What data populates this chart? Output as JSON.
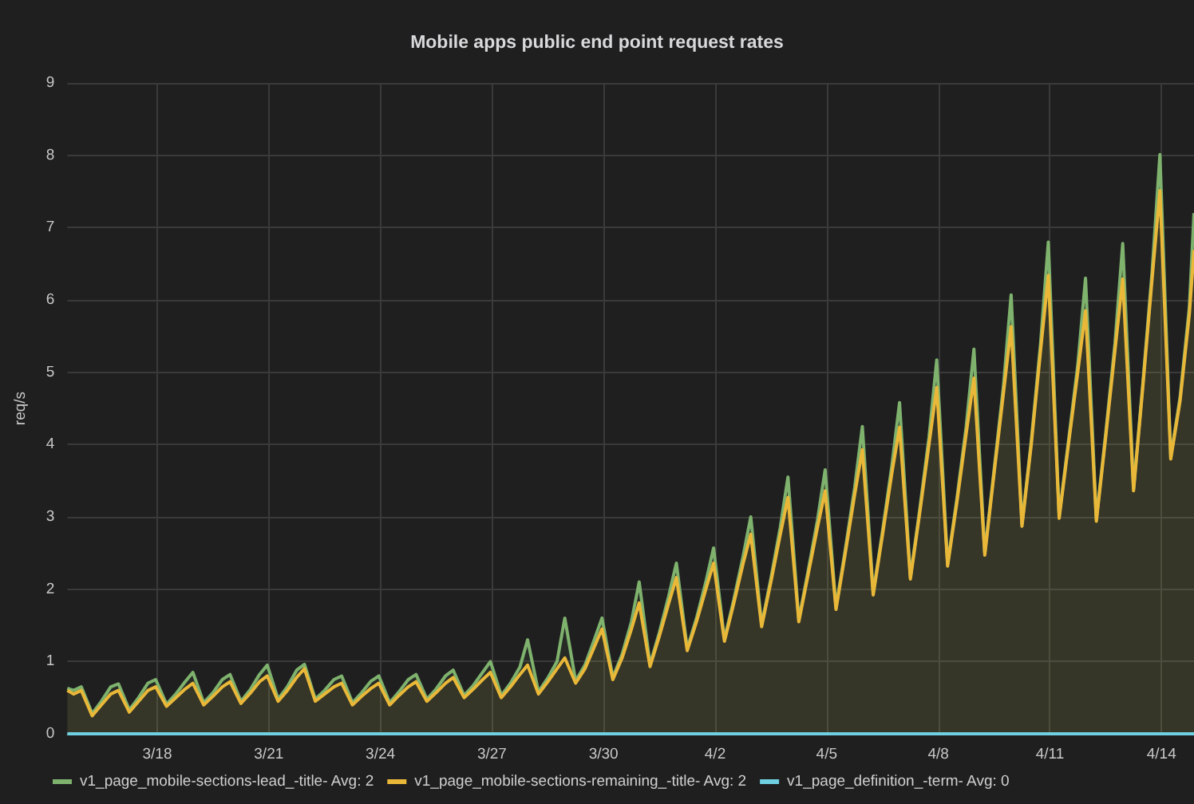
{
  "chart_data": {
    "type": "area",
    "title": "Mobile apps public end point request rates",
    "ylabel": "req/s",
    "x": [
      "--03-15T14:00",
      "--03-15T18:00",
      "--03-15T23:00",
      "--03-16T06:00",
      "--03-16T12:00",
      "--03-16T18:00",
      "--03-16T23:00",
      "--03-17T06:00",
      "--03-17T12:00",
      "--03-17T18:00",
      "--03-17T23:00",
      "--03-18T06:00",
      "--03-18T12:00",
      "--03-18T18:00",
      "--03-18T23:00",
      "--03-19T06:00",
      "--03-19T12:00",
      "--03-19T18:00",
      "--03-19T23:00",
      "--03-20T06:00",
      "--03-20T12:00",
      "--03-20T18:00",
      "--03-20T23:00",
      "--03-21T06:00",
      "--03-21T12:00",
      "--03-21T18:00",
      "--03-21T23:00",
      "--03-22T06:00",
      "--03-22T12:00",
      "--03-22T18:00",
      "--03-22T23:00",
      "--03-23T06:00",
      "--03-23T12:00",
      "--03-23T18:00",
      "--03-23T23:00",
      "--03-24T06:00",
      "--03-24T12:00",
      "--03-24T18:00",
      "--03-24T23:00",
      "--03-25T06:00",
      "--03-25T12:00",
      "--03-25T18:00",
      "--03-25T23:00",
      "--03-26T06:00",
      "--03-26T12:00",
      "--03-26T18:00",
      "--03-26T23:00",
      "--03-27T06:00",
      "--03-27T12:00",
      "--03-27T18:00",
      "--03-27T23:00",
      "--03-28T06:00",
      "--03-28T12:00",
      "--03-28T18:00",
      "--03-28T23:00",
      "--03-29T06:00",
      "--03-29T12:00",
      "--03-29T18:00",
      "--03-29T23:00",
      "--03-30T06:00",
      "--03-30T12:00",
      "--03-30T18:00",
      "--03-30T23:00",
      "--03-31T06:00",
      "--03-31T12:00",
      "--03-31T18:00",
      "--03-31T23:00",
      "--04-01T06:00",
      "--04-01T12:00",
      "--04-01T18:00",
      "--04-01T23:00",
      "--04-02T06:00",
      "--04-02T12:00",
      "--04-02T18:00",
      "--04-02T23:00",
      "--04-03T06:00",
      "--04-03T12:00",
      "--04-03T18:00",
      "--04-03T23:00",
      "--04-04T06:00",
      "--04-04T12:00",
      "--04-04T18:00",
      "--04-04T23:00",
      "--04-05T06:00",
      "--04-05T12:00",
      "--04-05T18:00",
      "--04-05T23:00",
      "--04-06T06:00",
      "--04-06T12:00",
      "--04-06T18:00",
      "--04-06T23:00",
      "--04-07T06:00",
      "--04-07T12:00",
      "--04-07T18:00",
      "--04-07T23:00",
      "--04-08T06:00",
      "--04-08T12:00",
      "--04-08T18:00",
      "--04-08T23:00",
      "--04-09T06:00",
      "--04-09T12:00",
      "--04-09T18:00",
      "--04-09T23:00",
      "--04-10T06:00",
      "--04-10T12:00",
      "--04-10T18:00",
      "--04-10T23:00",
      "--04-11T06:00",
      "--04-11T12:00",
      "--04-11T18:00",
      "--04-11T23:00",
      "--04-12T06:00",
      "--04-12T12:00",
      "--04-12T18:00",
      "--04-12T23:00",
      "--04-13T06:00",
      "--04-13T12:00",
      "--04-13T18:00",
      "--04-13T23:00",
      "--04-14T06:00",
      "--04-14T12:00",
      "--04-14T18:00",
      "--04-14T21:00"
    ],
    "series": [
      {
        "name": "v1_page_mobile-sections-lead_-title- Avg: 2",
        "color": "#7eb26d",
        "values": [
          0.63,
          0.6,
          0.65,
          0.28,
          0.45,
          0.65,
          0.69,
          0.33,
          0.5,
          0.7,
          0.75,
          0.41,
          0.55,
          0.72,
          0.85,
          0.43,
          0.57,
          0.75,
          0.82,
          0.45,
          0.61,
          0.82,
          0.95,
          0.48,
          0.65,
          0.88,
          0.96,
          0.48,
          0.6,
          0.75,
          0.8,
          0.43,
          0.57,
          0.73,
          0.8,
          0.43,
          0.58,
          0.75,
          0.82,
          0.48,
          0.62,
          0.8,
          0.88,
          0.53,
          0.67,
          0.85,
          1.0,
          0.53,
          0.7,
          0.92,
          1.3,
          0.58,
          0.77,
          1.0,
          1.6,
          0.73,
          0.95,
          1.3,
          1.6,
          0.78,
          1.1,
          1.55,
          2.1,
          0.96,
          1.4,
          1.9,
          2.36,
          1.18,
          1.6,
          2.1,
          2.57,
          1.31,
          1.85,
          2.45,
          3.0,
          1.51,
          2.15,
          2.85,
          3.55,
          1.58,
          2.25,
          2.95,
          3.65,
          1.75,
          2.55,
          3.4,
          4.25,
          1.95,
          2.8,
          3.7,
          4.58,
          2.17,
          3.1,
          4.1,
          5.17,
          2.35,
          3.25,
          4.25,
          5.32,
          2.5,
          3.65,
          4.8,
          6.07,
          2.9,
          4.05,
          5.4,
          6.8,
          3.01,
          4.05,
          5.1,
          6.3,
          2.97,
          4.15,
          5.4,
          6.78,
          3.39,
          4.85,
          6.4,
          8.01,
          3.83,
          4.65,
          5.9,
          7.2
        ]
      },
      {
        "name": "v1_page_mobile-sections-remaining_-title- Avg: 2",
        "color": "#eab839",
        "values": [
          0.6,
          0.55,
          0.6,
          0.25,
          0.4,
          0.55,
          0.6,
          0.3,
          0.45,
          0.6,
          0.65,
          0.38,
          0.5,
          0.62,
          0.7,
          0.4,
          0.52,
          0.65,
          0.72,
          0.42,
          0.56,
          0.72,
          0.8,
          0.45,
          0.6,
          0.78,
          0.9,
          0.45,
          0.55,
          0.65,
          0.7,
          0.4,
          0.52,
          0.63,
          0.7,
          0.4,
          0.53,
          0.65,
          0.72,
          0.45,
          0.57,
          0.7,
          0.78,
          0.5,
          0.62,
          0.75,
          0.85,
          0.5,
          0.65,
          0.82,
          0.95,
          0.55,
          0.72,
          0.9,
          1.05,
          0.7,
          0.9,
          1.2,
          1.45,
          0.75,
          1.05,
          1.45,
          1.81,
          0.93,
          1.35,
          1.8,
          2.16,
          1.15,
          1.55,
          2.0,
          2.36,
          1.28,
          1.8,
          2.35,
          2.76,
          1.48,
          2.1,
          2.75,
          3.27,
          1.55,
          2.2,
          2.85,
          3.36,
          1.72,
          2.5,
          3.3,
          3.93,
          1.92,
          2.75,
          3.6,
          4.24,
          2.14,
          3.05,
          4.0,
          4.79,
          2.32,
          3.2,
          4.15,
          4.92,
          2.47,
          3.6,
          4.7,
          5.63,
          2.87,
          4.0,
          5.3,
          6.34,
          2.98,
          4.0,
          5.0,
          5.85,
          2.94,
          4.1,
          5.3,
          6.29,
          3.36,
          4.8,
          6.3,
          7.51,
          3.8,
          4.6,
          5.8,
          6.69
        ]
      },
      {
        "name": "v1_page_definition_-term- Avg: 0",
        "type": "line",
        "color": "#6ed0e0",
        "x": [
          "--03-15T14:00",
          "--04-14T21:00"
        ],
        "values": [
          0,
          0
        ]
      }
    ],
    "xlim": [
      "--03-15T14:00",
      "--04-14T21:00"
    ],
    "xticks": [
      {
        "value": "--03-18",
        "label": "3/18"
      },
      {
        "value": "--03-21",
        "label": "3/21"
      },
      {
        "value": "--03-24",
        "label": "3/24"
      },
      {
        "value": "--03-27",
        "label": "3/27"
      },
      {
        "value": "--03-30",
        "label": "3/30"
      },
      {
        "value": "--04-02",
        "label": "4/2"
      },
      {
        "value": "--04-05",
        "label": "4/5"
      },
      {
        "value": "--04-08",
        "label": "4/8"
      },
      {
        "value": "--04-11",
        "label": "4/11"
      },
      {
        "value": "--04-14",
        "label": "4/14"
      }
    ],
    "ylim": [
      0,
      9
    ],
    "yticks": [
      0,
      1,
      2,
      3,
      4,
      5,
      6,
      7,
      8,
      9
    ],
    "grid": true,
    "legend": "bottom left"
  }
}
